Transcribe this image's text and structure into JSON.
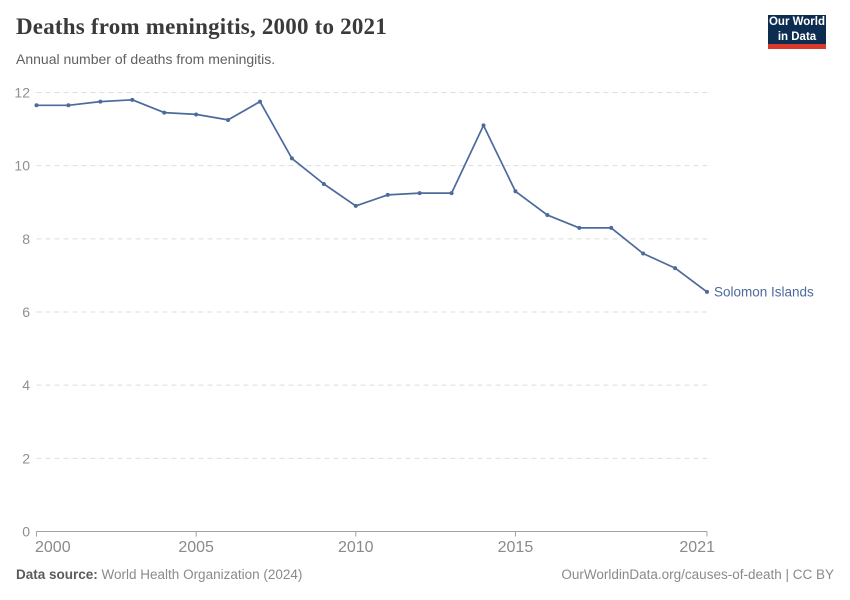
{
  "header": {
    "title": "Deaths from meningitis, 2000 to 2021",
    "subtitle": "Annual number of deaths from meningitis.",
    "logo": {
      "line1": "Our World",
      "line2": "in Data",
      "bg_color": "#0C2D50",
      "bar_color": "#D93A2B"
    }
  },
  "chart_data": {
    "type": "line",
    "title": "Deaths from meningitis, 2000 to 2021",
    "xlabel": "",
    "ylabel": "",
    "xlim": [
      2000,
      2021
    ],
    "ylim": [
      0,
      12
    ],
    "x_ticks": [
      2000,
      2005,
      2010,
      2015,
      2021
    ],
    "y_ticks": [
      0,
      2,
      4,
      6,
      8,
      10,
      12
    ],
    "grid": "horizontal-dashed",
    "legend_position": "end-of-line-label",
    "x": [
      2000,
      2001,
      2002,
      2003,
      2004,
      2005,
      2006,
      2007,
      2008,
      2009,
      2010,
      2011,
      2012,
      2013,
      2014,
      2015,
      2016,
      2017,
      2018,
      2019,
      2020,
      2021
    ],
    "series": [
      {
        "name": "Solomon Islands",
        "color": "#4C6A9C",
        "values": [
          11.65,
          11.65,
          11.75,
          11.8,
          11.45,
          11.4,
          11.25,
          11.75,
          10.2,
          9.5,
          8.9,
          9.2,
          9.25,
          9.25,
          11.1,
          9.3,
          8.65,
          8.3,
          8.3,
          7.6,
          7.2,
          6.55
        ]
      }
    ]
  },
  "footer": {
    "source_label": "Data source:",
    "source_value": " World Health Organization (2024)",
    "credit": "OurWorldinData.org/causes-of-death | CC BY"
  }
}
